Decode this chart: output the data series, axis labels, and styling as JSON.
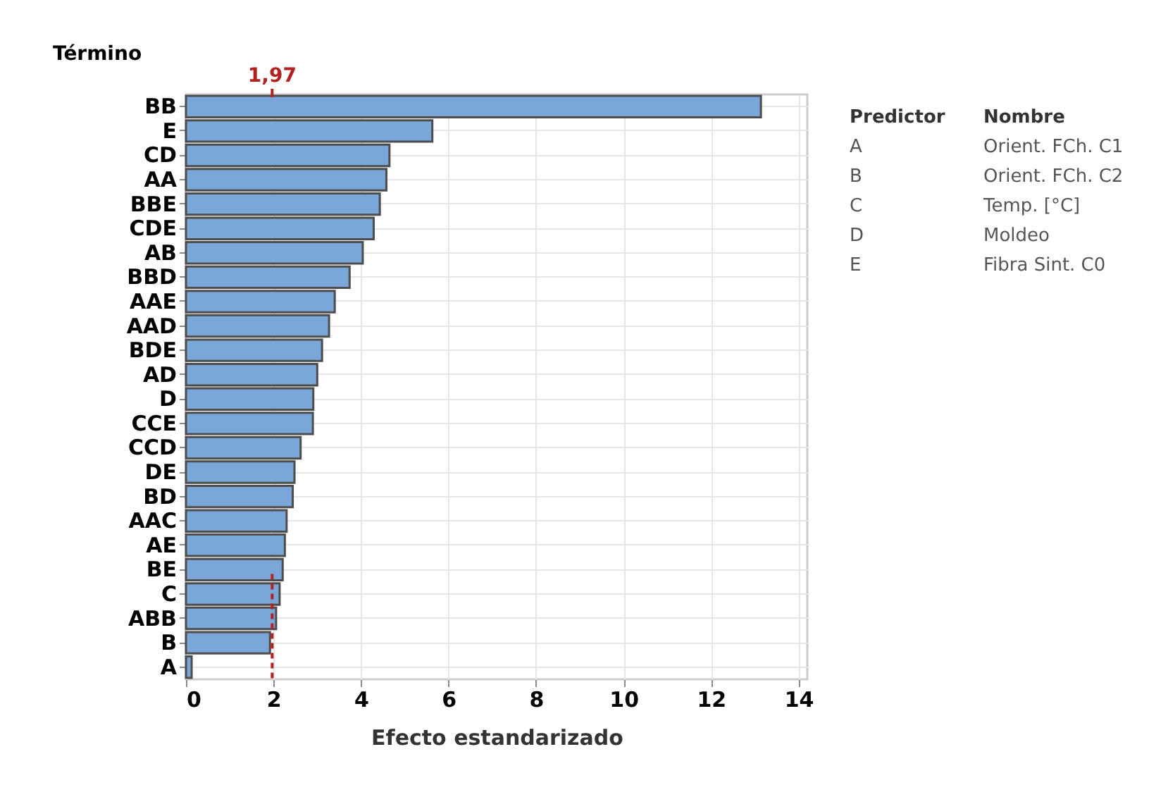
{
  "chart_data": {
    "type": "bar",
    "orientation": "horizontal",
    "xlabel": "Efecto estandarizado",
    "ylabel": "Término",
    "categories": [
      "BB",
      "E",
      "CD",
      "AA",
      "BBE",
      "CDE",
      "AB",
      "BBD",
      "AAE",
      "AAD",
      "BDE",
      "AD",
      "D",
      "CCE",
      "CCD",
      "DE",
      "BD",
      "AAC",
      "AE",
      "BE",
      "C",
      "ABB",
      "B",
      "A"
    ],
    "values": [
      13.14,
      5.63,
      4.65,
      4.58,
      4.43,
      4.29,
      4.04,
      3.74,
      3.4,
      3.27,
      3.11,
      3.0,
      2.91,
      2.9,
      2.62,
      2.48,
      2.44,
      2.3,
      2.26,
      2.21,
      2.14,
      2.06,
      1.92,
      0.13
    ],
    "color": "#7aa6d8",
    "xlim": [
      0,
      14.2
    ],
    "xticks": [
      0,
      2,
      4,
      6,
      8,
      10,
      12,
      14
    ],
    "grid": true,
    "ref_lines": [
      {
        "axis": "x",
        "value": 1.97,
        "label": "1,97",
        "color": "#b22222",
        "line_style": "dashed"
      }
    ],
    "annotations": [
      "Predictor",
      "Nombre",
      "A",
      "Orient. FCh. C1",
      "B",
      "Orient. FCh. C2",
      "C",
      "Temp. [°C]",
      "D",
      "Moldeo",
      "E",
      "Fibra Sint. C0"
    ]
  }
}
